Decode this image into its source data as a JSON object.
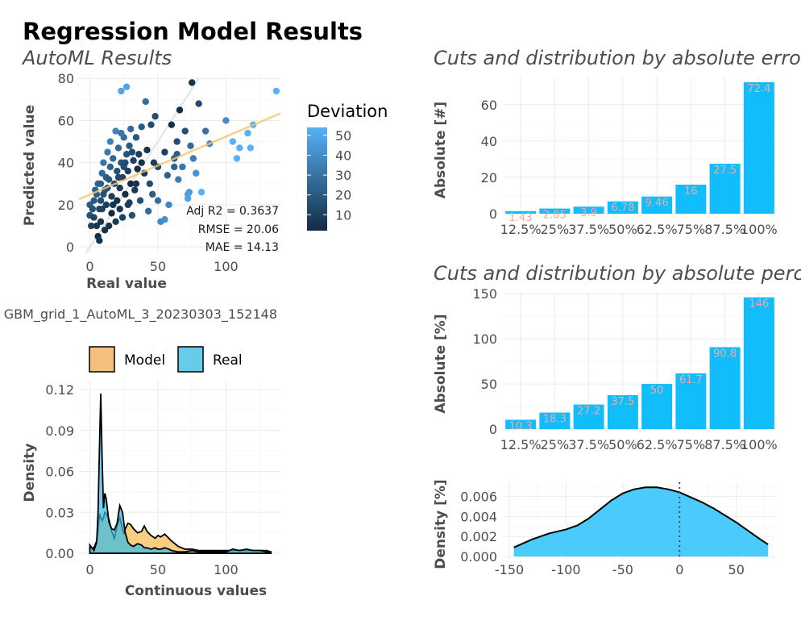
{
  "title": "Regression Model Results",
  "subtitle_left": "AutoML Results",
  "model_caption": "GBM_grid_1_AutoML_3_20230303_152148",
  "scatter": {
    "xlabel": "Real value",
    "ylabel": "Predicted value",
    "xticks": [
      "0",
      "50",
      "100"
    ],
    "yticks": [
      "0",
      "20",
      "40",
      "60",
      "80"
    ],
    "metrics": [
      "Adj R2 =  0.3637",
      "RMSE = 20.06",
      "MAE = 14.13"
    ],
    "legend_title": "Deviation",
    "legend_ticks": [
      "10",
      "20",
      "30",
      "40",
      "50"
    ],
    "colors": {
      "low": "#132b43",
      "high": "#56b1f7",
      "fit": "#f5c46b",
      "identity": "#d9d9d9"
    }
  },
  "density_plot": {
    "xlabel": "Continuous values",
    "ylabel": "Density",
    "xticks": [
      "0",
      "50",
      "100"
    ],
    "yticks": [
      "0.00",
      "0.03",
      "0.06",
      "0.09",
      "0.12"
    ],
    "legend": [
      {
        "label": "Model",
        "color": "#f5b94f"
      },
      {
        "label": "Real",
        "color": "#32bce5"
      }
    ]
  },
  "abs_error": {
    "title": "Cuts and distribution by absolute error",
    "ylabel": "Absolute [#]",
    "yticks": [
      "0",
      "20",
      "40",
      "60"
    ],
    "bar_color": "#11bdfb"
  },
  "abs_pct": {
    "title": "Cuts and distribution by absolute percentage error",
    "ylabel": "Absolute [%]",
    "yticks": [
      "0",
      "50",
      "100",
      "150"
    ],
    "bar_color": "#11bdfb"
  },
  "pct_density": {
    "ylabel": "Density [%]",
    "xticks": [
      "-150",
      "-100",
      "-50",
      "0",
      "50"
    ],
    "yticks": [
      "0.000",
      "0.002",
      "0.004",
      "0.006"
    ],
    "fill_color": "#40c8fb"
  },
  "chart_data": [
    {
      "type": "scatter",
      "xlabel": "Real value",
      "ylabel": "Predicted value",
      "xlim": [
        -8,
        140
      ],
      "ylim": [
        -3,
        82
      ],
      "points": [
        [
          0,
          20
        ],
        [
          0,
          15
        ],
        [
          1,
          10
        ],
        [
          2,
          18
        ],
        [
          3,
          22
        ],
        [
          4,
          27
        ],
        [
          5,
          25
        ],
        [
          6,
          30
        ],
        [
          6,
          5
        ],
        [
          7,
          3
        ],
        [
          8,
          12
        ],
        [
          8,
          22
        ],
        [
          9,
          35
        ],
        [
          9,
          18
        ],
        [
          10,
          40
        ],
        [
          10,
          25
        ],
        [
          11,
          8
        ],
        [
          12,
          33
        ],
        [
          12,
          20
        ],
        [
          13,
          45
        ],
        [
          13,
          28
        ],
        [
          14,
          10
        ],
        [
          15,
          38
        ],
        [
          15,
          50
        ],
        [
          16,
          24
        ],
        [
          16,
          16
        ],
        [
          17,
          42
        ],
        [
          18,
          30
        ],
        [
          19,
          55
        ],
        [
          19,
          12
        ],
        [
          20,
          36
        ],
        [
          20,
          22
        ],
        [
          21,
          47
        ],
        [
          22,
          18
        ],
        [
          22,
          28
        ],
        [
          23,
          40
        ],
        [
          24,
          33
        ],
        [
          24,
          14
        ],
        [
          25,
          52
        ],
        [
          26,
          25
        ],
        [
          27,
          44
        ],
        [
          28,
          36
        ],
        [
          28,
          20
        ],
        [
          29,
          48
        ],
        [
          30,
          56
        ],
        [
          30,
          30
        ],
        [
          31,
          15
        ],
        [
          32,
          41
        ],
        [
          33,
          27
        ],
        [
          34,
          52
        ],
        [
          35,
          37
        ],
        [
          36,
          44
        ],
        [
          37,
          22
        ],
        [
          38,
          57
        ],
        [
          40,
          35
        ],
        [
          42,
          46
        ],
        [
          44,
          30
        ],
        [
          45,
          58
        ],
        [
          46,
          25
        ],
        [
          47,
          40
        ],
        [
          48,
          62
        ],
        [
          50,
          38
        ],
        [
          52,
          12
        ],
        [
          55,
          45
        ],
        [
          57,
          34
        ],
        [
          58,
          20
        ],
        [
          60,
          58
        ],
        [
          62,
          42
        ],
        [
          64,
          50
        ],
        [
          65,
          32
        ],
        [
          66,
          65
        ],
        [
          68,
          38
        ],
        [
          70,
          55
        ],
        [
          72,
          25
        ],
        [
          74,
          48
        ],
        [
          75,
          78
        ],
        [
          76,
          42
        ],
        [
          78,
          35
        ],
        [
          80,
          68
        ],
        [
          82,
          26
        ],
        [
          85,
          55
        ],
        [
          88,
          49
        ],
        [
          100,
          60
        ],
        [
          105,
          50
        ],
        [
          108,
          42
        ],
        [
          110,
          47
        ],
        [
          116,
          54
        ],
        [
          118,
          47
        ],
        [
          120,
          58
        ],
        [
          137,
          74
        ],
        [
          5,
          10
        ],
        [
          8,
          30
        ],
        [
          11,
          27
        ],
        [
          14,
          32
        ],
        [
          17,
          20
        ],
        [
          21,
          33
        ],
        [
          26,
          40
        ],
        [
          29,
          21
        ],
        [
          31,
          45
        ],
        [
          34,
          30
        ],
        [
          3,
          14
        ],
        [
          7,
          18
        ],
        [
          23,
          54
        ],
        [
          25,
          38
        ],
        [
          38,
          40
        ],
        [
          43,
          17
        ],
        [
          27,
          76
        ],
        [
          23,
          74
        ],
        [
          41,
          69
        ],
        [
          62,
          38
        ],
        [
          64,
          44
        ],
        [
          72,
          23
        ],
        [
          73,
          26
        ],
        [
          50,
          22
        ],
        [
          55,
          13
        ]
      ]
    },
    {
      "type": "area",
      "xlabel": "Continuous values",
      "ylabel": "Density",
      "xlim": [
        -8,
        140
      ],
      "ylim": [
        0,
        0.12
      ],
      "x": [
        0,
        3,
        5,
        6,
        7,
        8,
        9,
        10,
        11,
        12,
        14,
        16,
        18,
        20,
        22,
        24,
        25,
        26,
        28,
        30,
        32,
        35,
        38,
        40,
        42,
        45,
        48,
        50,
        52,
        55,
        58,
        60,
        65,
        70,
        75,
        80,
        85,
        90,
        95,
        100,
        105,
        110,
        115,
        120,
        125,
        130,
        133
      ],
      "series": [
        {
          "name": "Model",
          "values": [
            0.004,
            0.004,
            0.009,
            0.017,
            0.029,
            0.026,
            0.024,
            0.026,
            0.03,
            0.029,
            0.025,
            0.016,
            0.011,
            0.02,
            0.026,
            0.018,
            0.014,
            0.018,
            0.022,
            0.021,
            0.018,
            0.015,
            0.016,
            0.02,
            0.016,
            0.013,
            0.011,
            0.013,
            0.012,
            0.014,
            0.011,
            0.009,
            0.005,
            0.003,
            0.003,
            0.002,
            0.002,
            0.002,
            0.002,
            0.002,
            0.002,
            0.002,
            0.002,
            0.002,
            0.002,
            0.002,
            0.001
          ]
        },
        {
          "name": "Real",
          "values": [
            0.006,
            0.002,
            0.008,
            0.03,
            0.075,
            0.117,
            0.07,
            0.033,
            0.044,
            0.04,
            0.023,
            0.018,
            0.017,
            0.022,
            0.035,
            0.03,
            0.022,
            0.015,
            0.008,
            0.006,
            0.005,
            0.007,
            0.006,
            0.004,
            0.004,
            0.003,
            0.004,
            0.003,
            0.003,
            0.004,
            0.003,
            0.002,
            0.001,
            0.001,
            0.002,
            0.001,
            0.001,
            0.001,
            0.001,
            0.001,
            0.003,
            0.002,
            0.003,
            0.002,
            0.002,
            0.001,
            0.001
          ]
        }
      ]
    },
    {
      "type": "bar",
      "title": "Cuts and distribution by absolute error",
      "ylabel": "Absolute [#]",
      "categories": [
        "12.5%",
        "25%",
        "37.5%",
        "50%",
        "62.5%",
        "75%",
        "87.5%",
        "100%"
      ],
      "values": [
        1.43,
        2.85,
        3.9,
        6.78,
        9.46,
        16,
        27.5,
        72.4
      ],
      "labels": [
        "1.43",
        "2.85",
        "3.9",
        "6.78",
        "9.46",
        "16",
        "27.5",
        "72.4"
      ],
      "ylim": [
        0,
        75
      ]
    },
    {
      "type": "bar",
      "title": "Cuts and distribution by absolute percentage error",
      "ylabel": "Absolute [%]",
      "categories": [
        "12.5%",
        "25%",
        "37.5%",
        "50%",
        "62.5%",
        "75%",
        "87.5%",
        "100%"
      ],
      "values": [
        10.3,
        18.3,
        27.2,
        37.5,
        50,
        61.7,
        90.8,
        146
      ],
      "labels": [
        "10.3",
        "18.3",
        "27.2",
        "37.5",
        "50",
        "61.7",
        "90.8",
        "146"
      ],
      "ylim": [
        0,
        152
      ]
    },
    {
      "type": "area",
      "ylabel": "Density [%]",
      "xlim": [
        -155,
        85
      ],
      "ylim": [
        0,
        0.0074
      ],
      "x": [
        -146,
        -130,
        -115,
        -100,
        -90,
        -80,
        -70,
        -60,
        -50,
        -40,
        -30,
        -20,
        -10,
        0,
        10,
        20,
        30,
        40,
        50,
        60,
        70,
        78
      ],
      "values": [
        0.0009,
        0.0017,
        0.0023,
        0.0027,
        0.0031,
        0.0038,
        0.0047,
        0.0056,
        0.0063,
        0.0067,
        0.0069,
        0.0069,
        0.0067,
        0.0064,
        0.0059,
        0.0054,
        0.0048,
        0.0041,
        0.0034,
        0.0026,
        0.0018,
        0.0012
      ]
    }
  ]
}
